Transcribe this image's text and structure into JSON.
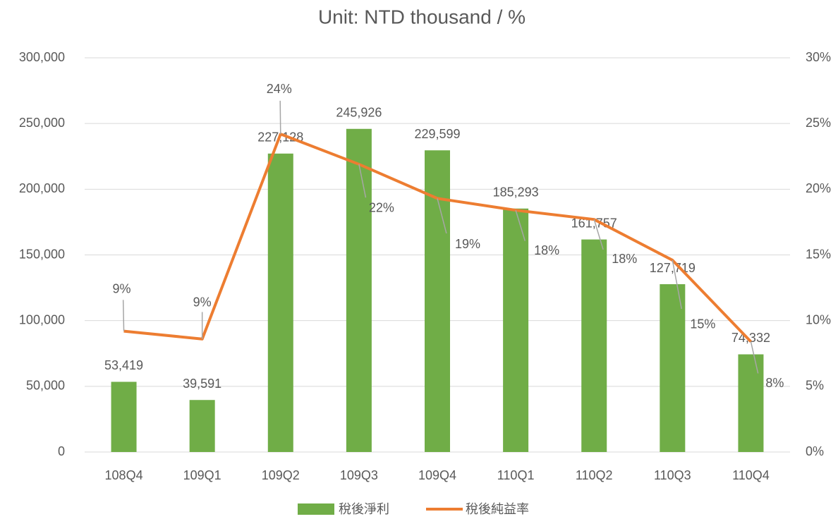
{
  "chart_data": {
    "type": "bar_line",
    "title": "Unit: NTD thousand / %",
    "categories": [
      "108Q4",
      "109Q1",
      "109Q2",
      "109Q3",
      "109Q4",
      "110Q1",
      "110Q2",
      "110Q3",
      "110Q4"
    ],
    "series": [
      {
        "name": "稅後淨利",
        "type": "bar",
        "color": "#70ad47",
        "values": [
          53419,
          39591,
          227128,
          245926,
          229599,
          185293,
          161757,
          127719,
          74332
        ],
        "value_labels": [
          "53,419",
          "39,591",
          "227,128",
          "245,926",
          "229,599",
          "185,293",
          "161,757",
          "127,719",
          "74,332"
        ]
      },
      {
        "name": "稅後純益率",
        "type": "line",
        "axis": "y2",
        "color": "#ed7d31",
        "values": [
          9.2,
          8.6,
          24.2,
          21.9,
          19.3,
          18.4,
          17.7,
          14.6,
          8.4
        ],
        "value_labels": [
          "9%",
          "9%",
          "24%",
          "22%",
          "19%",
          "18%",
          "18%",
          "15%",
          "8%"
        ]
      }
    ],
    "ylim": [
      0,
      300000
    ],
    "yticks": [
      0,
      {
        "value": 50000,
        "label": "50,000"
      },
      {
        "value": 100000,
        "label": "100,000"
      },
      {
        "value": 150000,
        "label": "150,000"
      },
      {
        "value": 200000,
        "label": "200,000"
      },
      {
        "value": 250000,
        "label": "250,000"
      },
      {
        "value": 300000,
        "label": "300,000"
      }
    ],
    "y2lim": [
      0,
      30
    ],
    "y2ticks": [
      {
        "value": 0,
        "label": "0%"
      },
      {
        "value": 5,
        "label": "5%"
      },
      {
        "value": 10,
        "label": "10%"
      },
      {
        "value": 15,
        "label": "15%"
      },
      {
        "value": 20,
        "label": "20%"
      },
      {
        "value": 25,
        "label": "25%"
      },
      {
        "value": 30,
        "label": "30%"
      }
    ],
    "grid": true,
    "legend": "bottom"
  }
}
